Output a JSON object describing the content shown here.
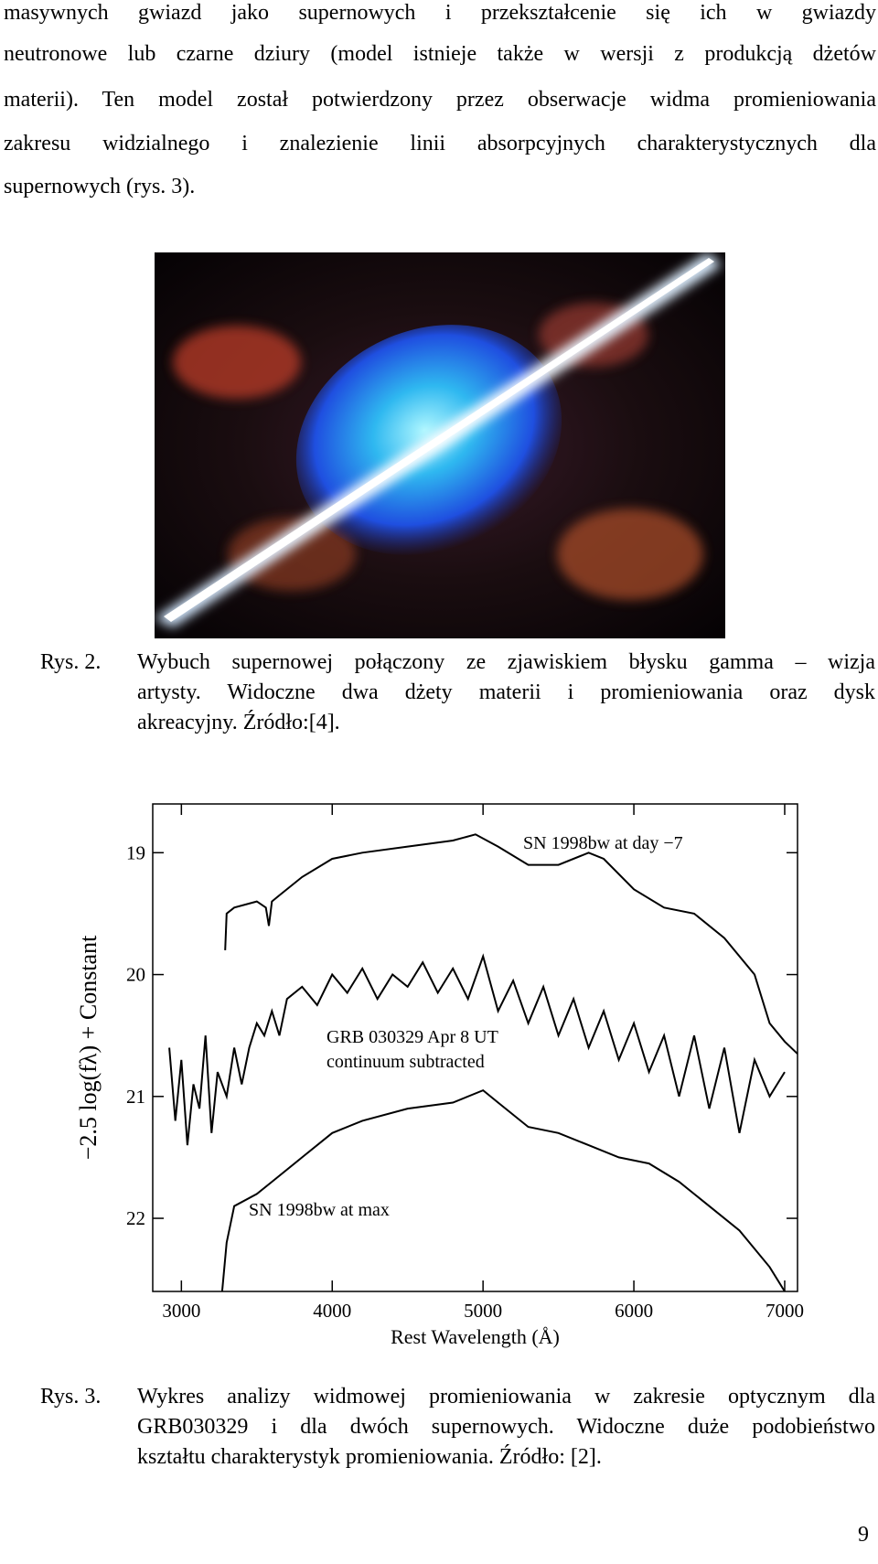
{
  "body": {
    "lines": [
      "masywnych gwiazd jako supernowych i przekształcenie się ich w gwiazdy",
      "neutronowe lub czarne dziury (model istnieje także w wersji z produkcją dżetów",
      "materii). Ten model został potwierdzony przez obserwacje widma promieniowania",
      "zakresu widzialnego i znalezienie linii absorpcyjnych charakterystycznych dla",
      "supernowych (rys. 3)."
    ]
  },
  "figure2": {
    "label": "Rys. 2.",
    "caption": [
      "Wybuch supernowej połączony ze zjawiskiem błysku gamma – wizja",
      "artysty. Widoczne dwa dżety materii i promieniowania oraz dysk",
      "akreacyjny. Źródło:[4]."
    ]
  },
  "chart_data": {
    "type": "line",
    "xlabel": "Rest Wavelength (Å)",
    "ylabel": "−2.5 log(fλ) + Constant",
    "xlim": [
      2810,
      7085
    ],
    "ylim": [
      18.6,
      22.6
    ],
    "y_inverted": true,
    "xticks": [
      3000,
      4000,
      5000,
      6000,
      7000
    ],
    "yticks": [
      19,
      20,
      21,
      22
    ],
    "annotations": [
      "SN 1998bw at day −7",
      "GRB 030329 Apr 8 UT",
      "continuum subtracted",
      "SN 1998bw at max"
    ],
    "series": [
      {
        "color": "#000000",
        "x": [
          3290,
          3300,
          3350,
          3500,
          3560,
          3580,
          3600,
          3650,
          3800,
          4000,
          4200,
          4500,
          4800,
          4950,
          5100,
          5300,
          5500,
          5700,
          5800,
          6000,
          6200,
          6400,
          6600,
          6800,
          6900,
          7000,
          7085
        ],
        "values": [
          19.8,
          19.5,
          19.45,
          19.4,
          19.45,
          19.6,
          19.4,
          19.35,
          19.2,
          19.05,
          19.0,
          18.95,
          18.9,
          18.85,
          18.95,
          19.1,
          19.1,
          19.0,
          19.05,
          19.3,
          19.45,
          19.5,
          19.7,
          20.0,
          20.4,
          20.55,
          20.65
        ]
      },
      {
        "color": "#000000",
        "x": [
          2920,
          2960,
          3000,
          3040,
          3080,
          3120,
          3160,
          3200,
          3240,
          3300,
          3350,
          3400,
          3450,
          3500,
          3550,
          3600,
          3650,
          3700,
          3800,
          3900,
          4000,
          4100,
          4200,
          4300,
          4400,
          4500,
          4600,
          4700,
          4800,
          4900,
          5000,
          5100,
          5200,
          5300,
          5400,
          5500,
          5600,
          5700,
          5800,
          5900,
          6000,
          6100,
          6200,
          6300,
          6400,
          6500,
          6600,
          6700,
          6800,
          6900,
          7000
        ],
        "values": [
          20.6,
          21.2,
          20.7,
          21.4,
          20.9,
          21.1,
          20.5,
          21.3,
          20.8,
          21.0,
          20.6,
          20.9,
          20.6,
          20.4,
          20.5,
          20.3,
          20.5,
          20.2,
          20.1,
          20.25,
          20.0,
          20.15,
          19.95,
          20.2,
          20.0,
          20.1,
          19.9,
          20.15,
          19.95,
          20.2,
          19.85,
          20.3,
          20.05,
          20.4,
          20.1,
          20.5,
          20.2,
          20.6,
          20.3,
          20.7,
          20.4,
          20.8,
          20.5,
          21.0,
          20.5,
          21.1,
          20.6,
          21.3,
          20.7,
          21.0,
          20.8
        ]
      },
      {
        "color": "#000000",
        "x": [
          3270,
          3300,
          3350,
          3500,
          3600,
          3800,
          4000,
          4200,
          4500,
          4800,
          5000,
          5100,
          5300,
          5500,
          5700,
          5900,
          6100,
          6300,
          6500,
          6700,
          6900,
          7000
        ],
        "values": [
          22.6,
          22.2,
          21.9,
          21.8,
          21.7,
          21.5,
          21.3,
          21.2,
          21.1,
          21.05,
          20.95,
          21.05,
          21.25,
          21.3,
          21.4,
          21.5,
          21.55,
          21.7,
          21.9,
          22.1,
          22.4,
          22.6
        ]
      }
    ]
  },
  "figure3": {
    "label": "Rys. 3.",
    "caption": [
      "Wykres analizy widmowej promieniowania w zakresie optycznym dla",
      "GRB030329 i dla dwóch supernowych. Widoczne duże podobieństwo",
      "kształtu charakterystyk promieniowania. Źródło: [2]."
    ]
  },
  "page_number": "9"
}
